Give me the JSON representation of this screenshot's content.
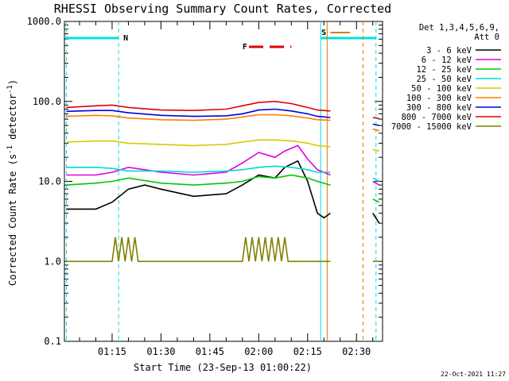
{
  "chart_data": {
    "type": "line",
    "title": "RHESSI Observing Summary Count Rates, Corrected",
    "xlabel": "Start Time (23-Sep-13 01:00:22)",
    "ylabel_parts": [
      "Corrected Count Rate (s",
      "-1",
      " detector",
      "-1",
      ")"
    ],
    "ylabel": "Corrected Count Rate (s-1 detector-1)",
    "yscale": "log",
    "ylim": [
      0.1,
      1000
    ],
    "y_ticks": [
      0.1,
      1.0,
      10.0,
      100.0,
      1000.0
    ],
    "y_tick_labels": [
      "0.1",
      "1.0",
      "10.0",
      "100.0",
      "1000.0"
    ],
    "xlim": [
      "01:00:22",
      "02:38:00"
    ],
    "x_ticks": [
      "01:15",
      "01:30",
      "01:45",
      "02:00",
      "02:15",
      "02:30"
    ],
    "legend_title": [
      "Det 1,3,4,5,6,9,",
      "Att 0"
    ],
    "legend_position": "right",
    "series": [
      {
        "name": "3 - 6 keV",
        "color": "#000000",
        "points": [
          [
            "01:01",
            4.5
          ],
          [
            "01:10",
            4.5
          ],
          [
            "01:15",
            5.5
          ],
          [
            "01:20",
            8
          ],
          [
            "01:25",
            9
          ],
          [
            "01:30",
            8
          ],
          [
            "01:40",
            6.5
          ],
          [
            "01:50",
            7
          ],
          [
            "01:55",
            9
          ],
          [
            "02:00",
            12
          ],
          [
            "02:05",
            11
          ],
          [
            "02:08",
            15
          ],
          [
            "02:12",
            18
          ],
          [
            "02:15",
            10
          ],
          [
            "02:18",
            4
          ],
          [
            "02:20",
            3.5
          ],
          [
            "02:22",
            4
          ]
        ],
        "points_after_gap": [
          [
            "02:35",
            4
          ],
          [
            "02:37",
            3
          ]
        ]
      },
      {
        "name": "6 - 12 keV",
        "color": "#e000e0",
        "points": [
          [
            "01:01",
            12
          ],
          [
            "01:10",
            12
          ],
          [
            "01:15",
            13
          ],
          [
            "01:20",
            15
          ],
          [
            "01:25",
            14
          ],
          [
            "01:30",
            13
          ],
          [
            "01:40",
            12
          ],
          [
            "01:50",
            13
          ],
          [
            "01:55",
            17
          ],
          [
            "02:00",
            23
          ],
          [
            "02:05",
            20
          ],
          [
            "02:08",
            24
          ],
          [
            "02:12",
            28
          ],
          [
            "02:15",
            19
          ],
          [
            "02:18",
            14
          ],
          [
            "02:22",
            12
          ]
        ],
        "points_after_gap": [
          [
            "02:35",
            10
          ],
          [
            "02:37",
            9
          ]
        ]
      },
      {
        "name": "12 - 25 keV",
        "color": "#00c800",
        "points": [
          [
            "01:01",
            9
          ],
          [
            "01:10",
            9.5
          ],
          [
            "01:15",
            10
          ],
          [
            "01:20",
            11
          ],
          [
            "01:30",
            9.5
          ],
          [
            "01:40",
            9
          ],
          [
            "01:50",
            9.5
          ],
          [
            "01:55",
            10
          ],
          [
            "02:00",
            11.5
          ],
          [
            "02:05",
            11
          ],
          [
            "02:10",
            12
          ],
          [
            "02:15",
            11
          ],
          [
            "02:18",
            10
          ],
          [
            "02:22",
            9
          ]
        ],
        "points_after_gap": [
          [
            "02:35",
            6
          ],
          [
            "02:37",
            5.5
          ]
        ]
      },
      {
        "name": "25 - 50 keV",
        "color": "#00d8d8",
        "points": [
          [
            "01:01",
            15
          ],
          [
            "01:10",
            15
          ],
          [
            "01:15",
            14.5
          ],
          [
            "01:20",
            13.5
          ],
          [
            "01:30",
            13.5
          ],
          [
            "01:40",
            13
          ],
          [
            "01:50",
            13.5
          ],
          [
            "01:55",
            14
          ],
          [
            "02:00",
            15
          ],
          [
            "02:05",
            15.5
          ],
          [
            "02:10",
            15
          ],
          [
            "02:15",
            14
          ],
          [
            "02:18",
            13
          ],
          [
            "02:22",
            13
          ]
        ],
        "points_after_gap": [
          [
            "02:35",
            11
          ],
          [
            "02:37",
            10
          ]
        ]
      },
      {
        "name": "50 - 100 keV",
        "color": "#d8c800",
        "points": [
          [
            "01:01",
            31
          ],
          [
            "01:10",
            32
          ],
          [
            "01:15",
            32
          ],
          [
            "01:20",
            30
          ],
          [
            "01:30",
            29
          ],
          [
            "01:40",
            28
          ],
          [
            "01:50",
            29
          ],
          [
            "01:55",
            31
          ],
          [
            "02:00",
            33
          ],
          [
            "02:05",
            33
          ],
          [
            "02:10",
            32
          ],
          [
            "02:15",
            30
          ],
          [
            "02:18",
            28
          ],
          [
            "02:22",
            27
          ]
        ],
        "points_after_gap": [
          [
            "02:35",
            25
          ],
          [
            "02:37",
            24
          ]
        ]
      },
      {
        "name": "100 - 300 keV",
        "color": "#ff7f00",
        "points": [
          [
            "01:01",
            65
          ],
          [
            "01:10",
            67
          ],
          [
            "01:15",
            66
          ],
          [
            "01:20",
            62
          ],
          [
            "01:30",
            59
          ],
          [
            "01:40",
            58
          ],
          [
            "01:50",
            60
          ],
          [
            "01:55",
            64
          ],
          [
            "02:00",
            68
          ],
          [
            "02:05",
            68
          ],
          [
            "02:10",
            66
          ],
          [
            "02:15",
            62
          ],
          [
            "02:18",
            59
          ],
          [
            "02:22",
            58
          ]
        ],
        "points_after_gap": [
          [
            "02:35",
            45
          ],
          [
            "02:37",
            43
          ]
        ]
      },
      {
        "name": "300 - 800 keV",
        "color": "#0000e0",
        "points": [
          [
            "01:01",
            75
          ],
          [
            "01:10",
            77
          ],
          [
            "01:15",
            77
          ],
          [
            "01:20",
            72
          ],
          [
            "01:30",
            67
          ],
          [
            "01:40",
            65
          ],
          [
            "01:50",
            66
          ],
          [
            "01:55",
            70
          ],
          [
            "02:00",
            78
          ],
          [
            "02:05",
            80
          ],
          [
            "02:10",
            76
          ],
          [
            "02:15",
            70
          ],
          [
            "02:18",
            65
          ],
          [
            "02:22",
            63
          ]
        ],
        "points_after_gap": [
          [
            "02:35",
            52
          ],
          [
            "02:37",
            50
          ]
        ]
      },
      {
        "name": "800 - 7000 keV",
        "color": "#e00000",
        "points": [
          [
            "01:01",
            84
          ],
          [
            "01:10",
            88
          ],
          [
            "01:15",
            90
          ],
          [
            "01:20",
            84
          ],
          [
            "01:30",
            78
          ],
          [
            "01:40",
            77
          ],
          [
            "01:50",
            80
          ],
          [
            "01:55",
            88
          ],
          [
            "02:00",
            97
          ],
          [
            "02:05",
            100
          ],
          [
            "02:10",
            94
          ],
          [
            "02:15",
            84
          ],
          [
            "02:18",
            78
          ],
          [
            "02:22",
            76
          ]
        ],
        "points_after_gap": [
          [
            "02:35",
            63
          ],
          [
            "02:37",
            61
          ]
        ]
      },
      {
        "name": "7000 - 15000 keV",
        "color": "#808000",
        "points": [
          [
            "01:01",
            1.0
          ],
          [
            "01:15",
            1.0
          ],
          [
            "01:16",
            2.0
          ],
          [
            "01:17",
            1.0
          ],
          [
            "01:18",
            2.0
          ],
          [
            "01:19",
            1.0
          ],
          [
            "01:20",
            2.0
          ],
          [
            "01:21",
            1.0
          ],
          [
            "01:22",
            2.0
          ],
          [
            "01:23",
            1.0
          ],
          [
            "01:55",
            1.0
          ],
          [
            "01:56",
            2.0
          ],
          [
            "01:57",
            1.0
          ],
          [
            "01:58",
            2.0
          ],
          [
            "01:59",
            1.0
          ],
          [
            "02:00",
            2.0
          ],
          [
            "02:01",
            1.0
          ],
          [
            "02:02",
            2.0
          ],
          [
            "02:03",
            1.0
          ],
          [
            "02:04",
            2.0
          ],
          [
            "02:05",
            1.0
          ],
          [
            "02:06",
            2.0
          ],
          [
            "02:07",
            1.0
          ],
          [
            "02:08",
            2.0
          ],
          [
            "02:09",
            1.0
          ],
          [
            "02:22",
            1.0
          ]
        ],
        "points_after_gap": [
          [
            "02:35",
            1.0
          ],
          [
            "02:37",
            1.0
          ]
        ]
      }
    ],
    "annotations": {
      "night_label": "N",
      "flare_label": "F",
      "saa_label": "S"
    },
    "colors": {
      "cyan": "#00e0e0",
      "orange": "#e07800",
      "red": "#e00000"
    },
    "timestamp": "22-Oct-2021 11:27"
  }
}
